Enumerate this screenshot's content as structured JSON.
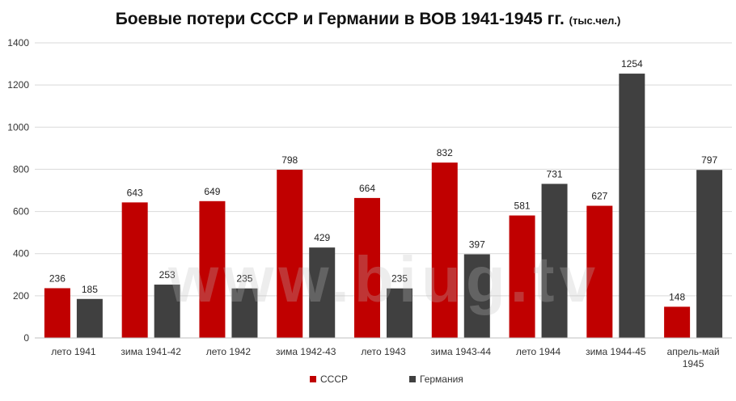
{
  "chart_data": {
    "type": "bar",
    "title": "Боевые потери СССР и Германии в ВОВ 1941-1945 гг.",
    "unit": "(тыс.чел.)",
    "categories": [
      "лето 1941",
      "зима 1941-42",
      "лето 1942",
      "зима 1942-43",
      "лето 1943",
      "зима 1943-44",
      "лето 1944",
      "зима 1944-45",
      "апрель-май 1945"
    ],
    "series": [
      {
        "name": "СССР",
        "color": "#c00000",
        "values": [
          236,
          643,
          649,
          798,
          664,
          832,
          581,
          627,
          148
        ]
      },
      {
        "name": "Германия",
        "color": "#404040",
        "values": [
          185,
          253,
          235,
          429,
          235,
          397,
          731,
          1254,
          797
        ]
      }
    ],
    "ylim": [
      0,
      1400
    ],
    "yticks": [
      0,
      200,
      400,
      600,
      800,
      1000,
      1200,
      1400
    ],
    "grid": true,
    "legend": "bottom-center"
  },
  "watermark": "www.biug.tv"
}
